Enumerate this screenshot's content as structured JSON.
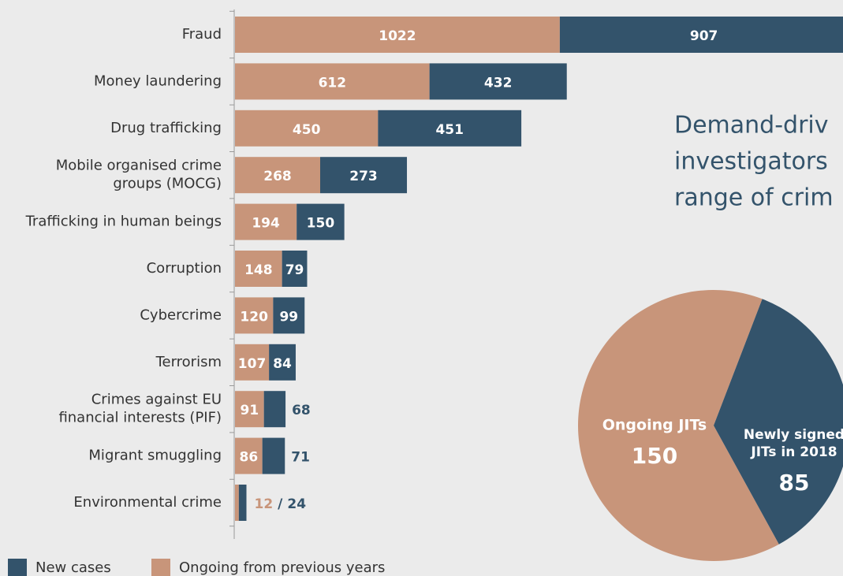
{
  "chart_data": [
    {
      "type": "stacked-bar",
      "categories": [
        "Fraud",
        "Money laundering",
        "Drug trafficking",
        [
          "Mobile organised crime",
          "groups (MOCG)"
        ],
        "Trafficking in human beings",
        "Corruption",
        "Cybercrime",
        "Terrorism",
        [
          "Crimes against EU",
          "financial interests (PIF)"
        ],
        "Migrant smuggling",
        "Environmental crime"
      ],
      "series": [
        {
          "name": "Ongoing from previous years",
          "color": "#c8957a",
          "values": [
            1022,
            612,
            450,
            268,
            194,
            148,
            120,
            107,
            91,
            86,
            12
          ]
        },
        {
          "name": "New cases",
          "color": "#33536b",
          "values": [
            907,
            432,
            451,
            273,
            150,
            79,
            99,
            84,
            68,
            71,
            24
          ]
        }
      ],
      "label_separator": "/"
    },
    {
      "type": "pie",
      "annotation": [
        "Demand-driv",
        "investigators",
        "range of crim"
      ],
      "categories": [
        [
          "Ongoing JITs"
        ],
        [
          "Newly signed",
          "JITs in 2018"
        ]
      ],
      "values": [
        150,
        85
      ],
      "colors": [
        "#c8957a",
        "#33536b"
      ]
    }
  ]
}
